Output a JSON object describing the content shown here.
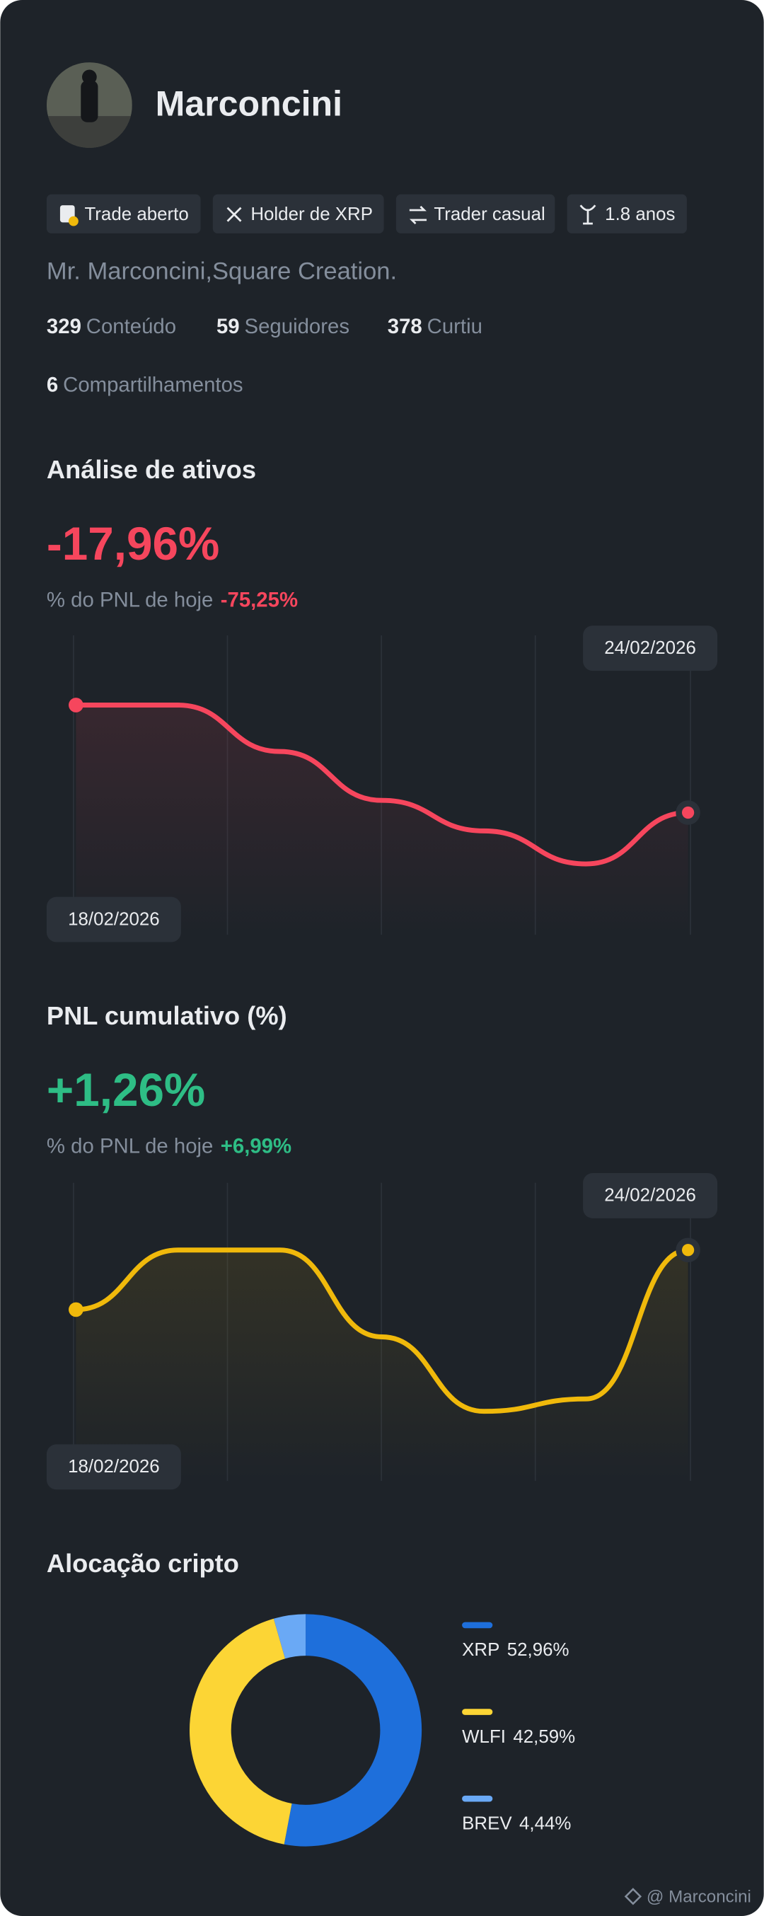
{
  "profile": {
    "name": "Marconcini",
    "tags": [
      "Trade aberto",
      "Holder de XRP",
      "Trader casual",
      "1.8 anos"
    ],
    "bio": "Mr. Marconcini,Square Creation.",
    "stats": [
      {
        "value": 329,
        "label": "Conteúdo"
      },
      {
        "value": 59,
        "label": "Seguidores"
      },
      {
        "value": 378,
        "label": "Curtiu"
      },
      {
        "value": 6,
        "label": "Compartilhamentos"
      }
    ]
  },
  "chart_data": [
    {
      "type": "line",
      "title": "Análise de ativos",
      "headline": "-17,96%",
      "subtitle": "% do PNL de hoje",
      "subtitle_value": "-75,25%",
      "x": [
        "18/02/2026",
        null,
        null,
        null,
        null,
        null,
        "24/02/2026"
      ],
      "series": [
        {
          "color": "#f6465d",
          "values": [
            -5,
            -5,
            -8.8,
            -12.8,
            -15.3,
            -18,
            -13.8
          ]
        }
      ]
    },
    {
      "type": "line",
      "title": "PNL cumulativo (%)",
      "headline": "+1,26%",
      "subtitle": "% do PNL de hoje",
      "subtitle_value": "+6,99%",
      "x": [
        "18/02/2026",
        null,
        null,
        null,
        null,
        null,
        "24/02/2026"
      ],
      "series": [
        {
          "color": "#f0b90b",
          "values": [
            0.34,
            1.3,
            1.3,
            -0.1,
            -1.3,
            -1.1,
            1.3
          ]
        }
      ]
    },
    {
      "type": "pie",
      "title": "Alocação cripto",
      "categories": [
        "XRP",
        "WLFI",
        "BREV"
      ],
      "values": [
        52.96,
        42.59,
        4.44
      ],
      "value_labels": [
        "52,96%",
        "42,59%",
        "4,44%"
      ],
      "colors": [
        "#1e6fdb",
        "#fcd535",
        "#6aa9f5"
      ]
    }
  ],
  "footer": "@ Marconcini"
}
